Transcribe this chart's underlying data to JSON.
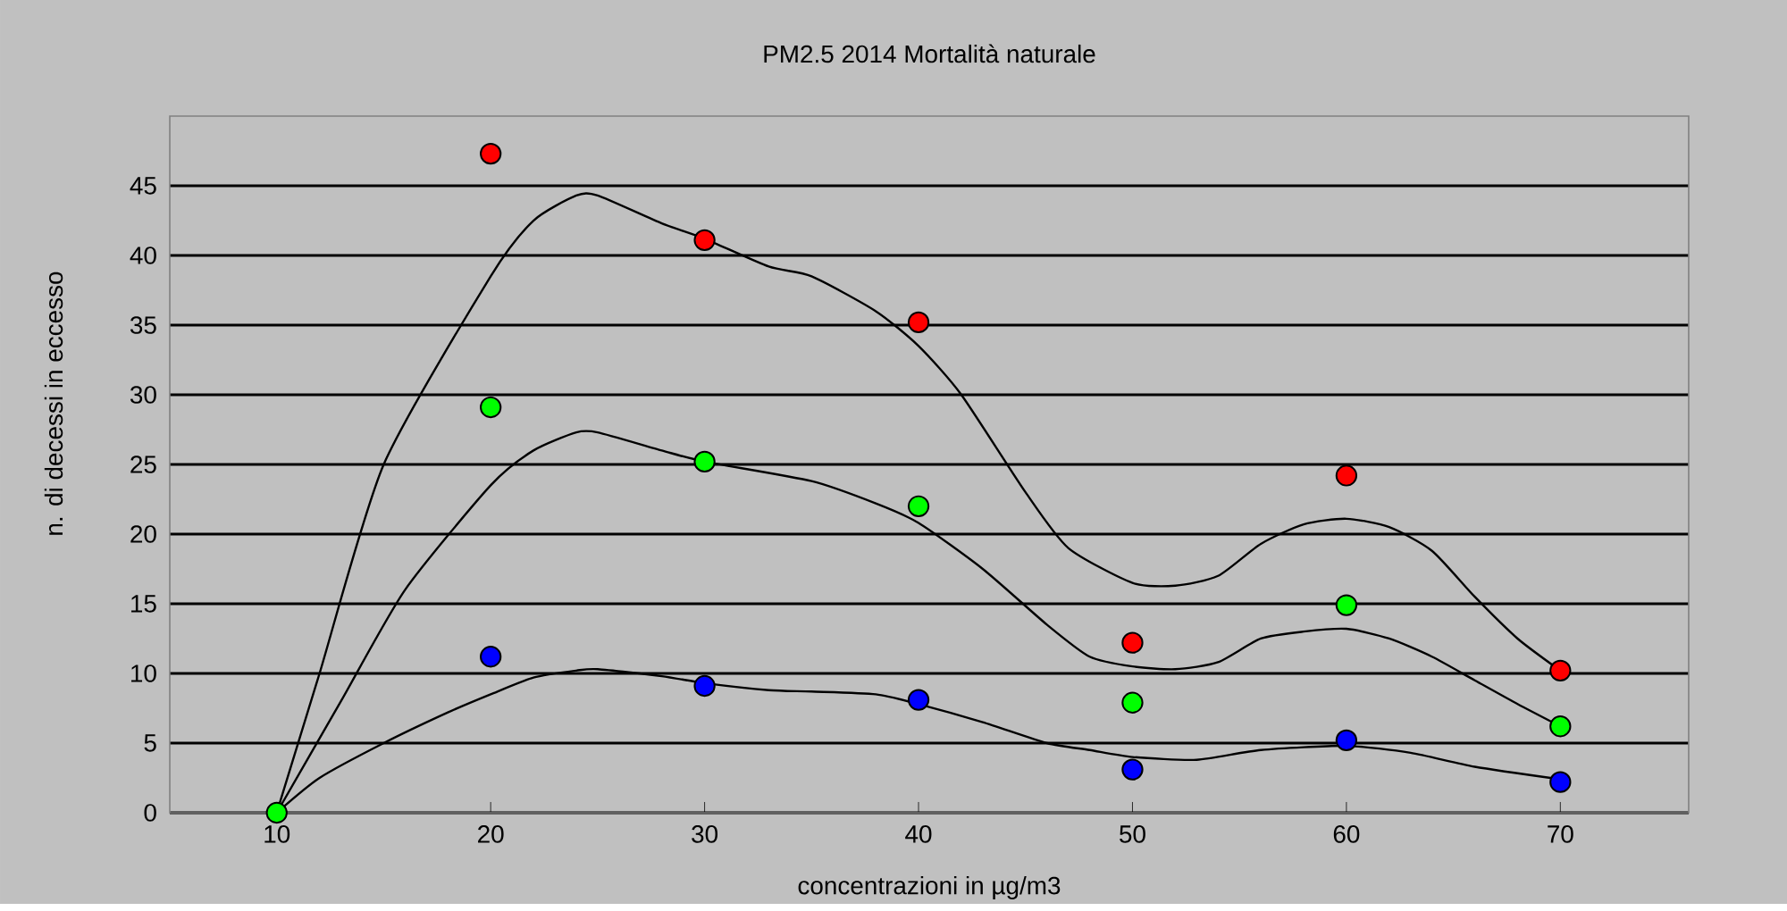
{
  "chart_data": {
    "type": "scatter",
    "title": "PM2.5  2014  Mortalità naturale",
    "xlabel": "concentrazioni in µg/m3",
    "ylabel": "n. di decessi in eccesso",
    "x": [
      10,
      20,
      30,
      40,
      50,
      60,
      70
    ],
    "series": [
      {
        "marker": "circle",
        "color": "#ff0000",
        "values": [
          null,
          47.3,
          41.1,
          35.2,
          12.2,
          24.2,
          10.2
        ]
      },
      {
        "marker": "circle",
        "color": "#0000ff",
        "values": [
          null,
          11.2,
          9.1,
          8.1,
          3.1,
          5.2,
          2.2
        ]
      },
      {
        "marker": "circle",
        "color": "#00ff00",
        "values": [
          0,
          29.1,
          25.2,
          22.0,
          7.9,
          14.9,
          6.2
        ]
      },
      {
        "type": "line",
        "marker": "none",
        "color": "#000000",
        "x": [
          10,
          12,
          15,
          20,
          22,
          24,
          25,
          28,
          30,
          33,
          35,
          38,
          40,
          42,
          45,
          47,
          50,
          52,
          54,
          56,
          58,
          60,
          62,
          64,
          66,
          68,
          70
        ],
        "values": [
          0,
          10,
          25,
          38.5,
          42.5,
          44.3,
          44.3,
          42.3,
          41.2,
          39.2,
          38.5,
          36,
          33.5,
          30,
          23,
          19,
          16.5,
          16.3,
          17,
          19.3,
          20.7,
          21.1,
          20.5,
          18.8,
          15.5,
          12.5,
          10.2
        ]
      },
      {
        "type": "line",
        "marker": "none",
        "color": "#000000",
        "x": [
          10,
          13,
          16,
          20,
          22,
          24,
          25,
          28,
          30,
          35,
          38,
          40,
          43,
          46,
          48,
          50,
          52,
          54,
          56,
          58,
          60,
          62,
          64,
          66,
          68,
          70
        ],
        "values": [
          0,
          8,
          16,
          23.5,
          26,
          27.3,
          27.3,
          26,
          25.2,
          23.8,
          22.2,
          20.8,
          17.5,
          13.5,
          11.2,
          10.5,
          10.3,
          10.8,
          12.5,
          13.0,
          13.2,
          12.5,
          11.2,
          9.5,
          7.8,
          6.2
        ]
      },
      {
        "type": "line",
        "marker": "none",
        "color": "#000000",
        "x": [
          10,
          12,
          15,
          18,
          20,
          22,
          24,
          25,
          28,
          30,
          33,
          35,
          38,
          40,
          43,
          46,
          48,
          50,
          53,
          56,
          60,
          63,
          66,
          70
        ],
        "values": [
          0,
          2.5,
          5,
          7.2,
          8.5,
          9.7,
          10.2,
          10.3,
          9.8,
          9.3,
          8.8,
          8.7,
          8.5,
          7.8,
          6.5,
          5.0,
          4.5,
          4.0,
          3.8,
          4.5,
          4.8,
          4.3,
          3.3,
          2.4
        ]
      }
    ],
    "xlim": [
      5,
      76
    ],
    "ylim": [
      0,
      50
    ],
    "xticks": [
      10,
      20,
      30,
      40,
      50,
      60,
      70
    ],
    "yticks": [
      0,
      5,
      10,
      15,
      20,
      25,
      30,
      35,
      40,
      45
    ],
    "grid": "y"
  }
}
